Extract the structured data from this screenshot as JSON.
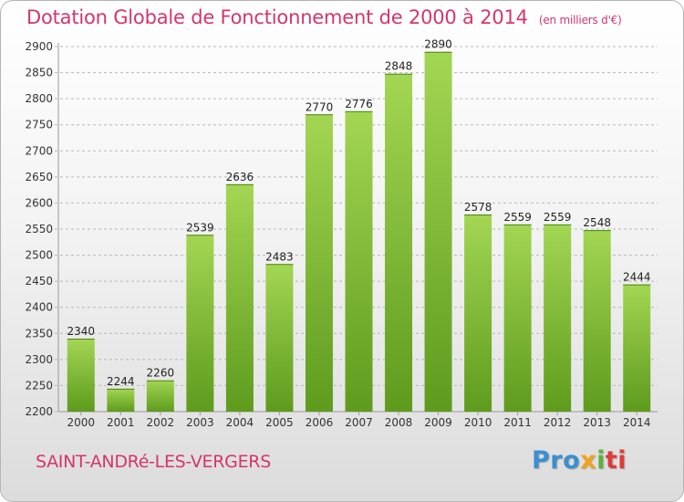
{
  "title": "Dotation Globale de Fonctionnement de 2000 à 2014",
  "unit_note": "(en milliers d'€)",
  "commune": "SAINT-ANDRé-LES-VERGERS",
  "logo": {
    "parts": [
      "Pro",
      "x",
      "i",
      "ti"
    ]
  },
  "colors": {
    "title": "#d5356b",
    "bar_light": "#a3d653",
    "bar_dark": "#5e9b1d",
    "grid": "#b8b8b8"
  },
  "chart_data": {
    "type": "bar",
    "title": "Dotation Globale de Fonctionnement de 2000 à 2014",
    "xlabel": "",
    "ylabel": "",
    "categories": [
      "2000",
      "2001",
      "2002",
      "2003",
      "2004",
      "2005",
      "2006",
      "2007",
      "2008",
      "2009",
      "2010",
      "2011",
      "2012",
      "2013",
      "2014"
    ],
    "values": [
      2340,
      2244,
      2260,
      2539,
      2636,
      2483,
      2770,
      2776,
      2848,
      2890,
      2578,
      2559,
      2559,
      2548,
      2444
    ],
    "ylim": [
      2200,
      2900
    ],
    "yticks": [
      2200,
      2250,
      2300,
      2350,
      2400,
      2450,
      2500,
      2550,
      2600,
      2650,
      2700,
      2750,
      2800,
      2850,
      2900
    ],
    "grid": true,
    "legend": "none"
  }
}
